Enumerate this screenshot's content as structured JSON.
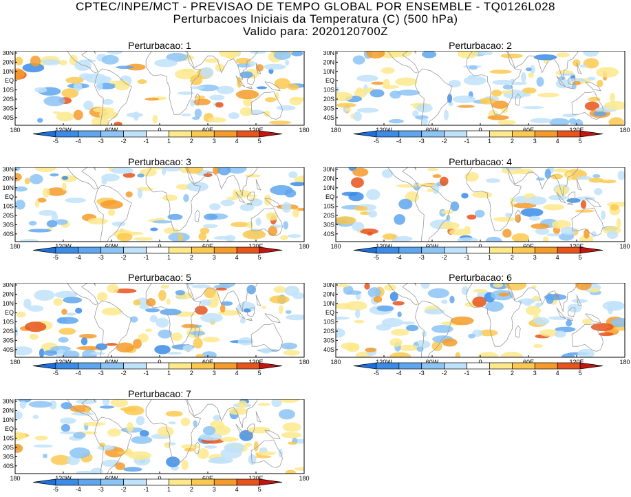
{
  "title": {
    "line1": "CPTEC/INPE/MCT - PREVISAO DE TEMPO GLOBAL POR ENSEMBLE - TQ0126L028",
    "line2": "Perturbacoes Iniciais da Temperatura (C) (500 hPa)",
    "line3": "Valido para: 2020120700Z"
  },
  "panels": [
    {
      "label": "Perturbacao: 1"
    },
    {
      "label": "Perturbacao: 2"
    },
    {
      "label": "Perturbacao: 3"
    },
    {
      "label": "Perturbacao: 4"
    },
    {
      "label": "Perturbacao: 5"
    },
    {
      "label": "Perturbacao: 6"
    },
    {
      "label": "Perturbacao: 7"
    }
  ],
  "lat_ticks": [
    "30N",
    "20N",
    "10N",
    "EQ",
    "10S",
    "20S",
    "30S",
    "40S"
  ],
  "lon_ticks": [
    "180",
    "120W",
    "60W",
    "0",
    "60E",
    "120E",
    "180"
  ],
  "colorbar": {
    "labels": [
      "-5",
      "-4",
      "-3",
      "-2",
      "-1",
      "1",
      "2",
      "3",
      "4",
      "5"
    ],
    "colors": [
      "#1e6fd9",
      "#3a8ce8",
      "#5fa6ee",
      "#8cc4f5",
      "#bfe2fa",
      "#ffffff",
      "#fde98c",
      "#fbc94f",
      "#f49b2a",
      "#e8541c",
      "#c0160f"
    ]
  }
}
